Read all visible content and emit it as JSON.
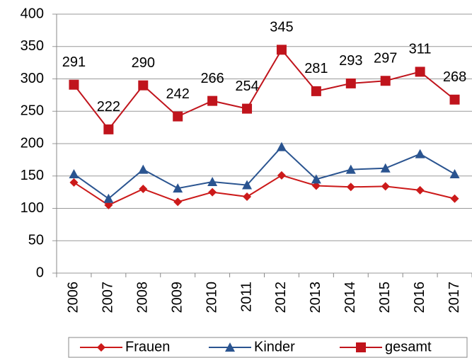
{
  "chart_data": {
    "type": "line",
    "categories": [
      "2006",
      "2007",
      "2008",
      "2009",
      "2010",
      "2011",
      "2012",
      "2013",
      "2014",
      "2015",
      "2016",
      "2017"
    ],
    "series": [
      {
        "name": "Frauen",
        "color": "#cc1a1a",
        "marker": "diamond",
        "values": [
          140,
          105,
          130,
          110,
          125,
          118,
          151,
          135,
          133,
          134,
          128,
          115
        ]
      },
      {
        "name": "Kinder",
        "color": "#2a5490",
        "marker": "triangle",
        "values": [
          153,
          115,
          160,
          131,
          141,
          136,
          195,
          145,
          160,
          162,
          184,
          153
        ]
      },
      {
        "name": "gesamt",
        "color": "#c0141c",
        "marker": "square",
        "show_labels": true,
        "values": [
          291,
          222,
          290,
          242,
          266,
          254,
          345,
          281,
          293,
          297,
          311,
          268
        ]
      }
    ],
    "ylim": [
      0,
      400
    ],
    "yticks": [
      0,
      50,
      100,
      150,
      200,
      250,
      300,
      350,
      400
    ],
    "grid": true,
    "legend": "bottom"
  }
}
